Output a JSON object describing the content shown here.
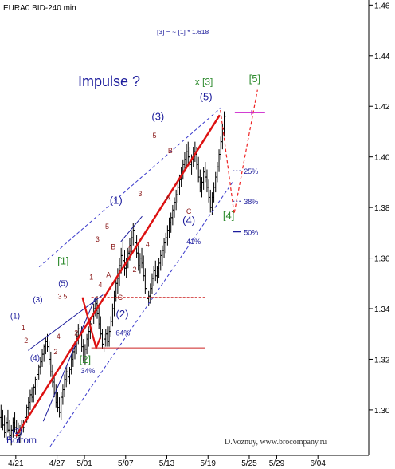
{
  "chart_data": {
    "type": "candlestick",
    "title": "EURA0 BID-240 min",
    "formula": "[3] = ~ [1] * 1.618",
    "impulse_label": "Impulse ?",
    "bottom_label": "Bottom",
    "credit": "D.Voznuy, www.brocompany.ru",
    "ylim": [
      1.282,
      1.462
    ],
    "y_ticks": [
      "1.46",
      "1.44",
      "1.42",
      "1.40",
      "1.38",
      "1.36",
      "1.34",
      "1.32",
      "1.30"
    ],
    "x_ticks": [
      "4/21",
      "4/27",
      "5/01",
      "5/07",
      "5/13",
      "5/19",
      "5/25",
      "5/29",
      "6/04"
    ],
    "x_tick_days": [
      0,
      6,
      10,
      16,
      22,
      28,
      34,
      38,
      44
    ],
    "xlim_days": [
      -2.3,
      51.4
    ],
    "candles": [
      [
        -2.15,
        1.297,
        1.302,
        1.293,
        1.297
      ],
      [
        -1.9,
        1.297,
        1.3,
        1.292,
        1.294
      ],
      [
        -1.65,
        1.294,
        1.298,
        1.289,
        1.291
      ],
      [
        -1.4,
        1.291,
        1.297,
        1.288,
        1.295
      ],
      [
        -1.15,
        1.295,
        1.3,
        1.291,
        1.292
      ],
      [
        -0.9,
        1.292,
        1.296,
        1.288,
        1.29
      ],
      [
        -0.65,
        1.29,
        1.294,
        1.286,
        1.292
      ],
      [
        -0.4,
        1.292,
        1.297,
        1.289,
        1.295
      ],
      [
        -0.15,
        1.295,
        1.299,
        1.291,
        1.293
      ],
      [
        0.1,
        1.293,
        1.296,
        1.289,
        1.291
      ],
      [
        0.35,
        1.291,
        1.295,
        1.288,
        1.29
      ],
      [
        0.6,
        1.29,
        1.294,
        1.287,
        1.292
      ],
      [
        0.85,
        1.292,
        1.296,
        1.29,
        1.294
      ],
      [
        1.1,
        1.294,
        1.296,
        1.291,
        1.293
      ],
      [
        1.35,
        1.293,
        1.298,
        1.292,
        1.297
      ],
      [
        1.6,
        1.297,
        1.302,
        1.295,
        1.301
      ],
      [
        1.85,
        1.301,
        1.305,
        1.297,
        1.303
      ],
      [
        2.1,
        1.303,
        1.308,
        1.3,
        1.306
      ],
      [
        2.35,
        1.306,
        1.309,
        1.303,
        1.305
      ],
      [
        2.6,
        1.305,
        1.31,
        1.303,
        1.309
      ],
      [
        2.85,
        1.309,
        1.313,
        1.306,
        1.312
      ],
      [
        3.1,
        1.312,
        1.316,
        1.309,
        1.314
      ],
      [
        3.35,
        1.314,
        1.318,
        1.312,
        1.317
      ],
      [
        3.6,
        1.317,
        1.321,
        1.314,
        1.319
      ],
      [
        3.85,
        1.319,
        1.324,
        1.317,
        1.322
      ],
      [
        4.1,
        1.322,
        1.326,
        1.319,
        1.325
      ],
      [
        4.35,
        1.325,
        1.329,
        1.322,
        1.327
      ],
      [
        4.6,
        1.327,
        1.33,
        1.323,
        1.325
      ],
      [
        4.85,
        1.325,
        1.327,
        1.318,
        1.32
      ],
      [
        5.1,
        1.32,
        1.323,
        1.313,
        1.315
      ],
      [
        5.35,
        1.315,
        1.318,
        1.309,
        1.311
      ],
      [
        5.6,
        1.311,
        1.314,
        1.305,
        1.307
      ],
      [
        5.85,
        1.307,
        1.31,
        1.301,
        1.303
      ],
      [
        6.1,
        1.303,
        1.307,
        1.299,
        1.301
      ],
      [
        6.35,
        1.301,
        1.305,
        1.297,
        1.299
      ],
      [
        6.6,
        1.299,
        1.307,
        1.296,
        1.305
      ],
      [
        6.85,
        1.305,
        1.31,
        1.302,
        1.308
      ],
      [
        7.1,
        1.308,
        1.314,
        1.305,
        1.312
      ],
      [
        7.35,
        1.312,
        1.317,
        1.309,
        1.315
      ],
      [
        7.6,
        1.315,
        1.318,
        1.311,
        1.313
      ],
      [
        7.85,
        1.313,
        1.317,
        1.31,
        1.316
      ],
      [
        8.1,
        1.316,
        1.322,
        1.314,
        1.32
      ],
      [
        8.35,
        1.32,
        1.325,
        1.317,
        1.323
      ],
      [
        8.6,
        1.323,
        1.327,
        1.32,
        1.325
      ],
      [
        8.85,
        1.325,
        1.331,
        1.322,
        1.329
      ],
      [
        9.1,
        1.329,
        1.334,
        1.326,
        1.332
      ],
      [
        9.35,
        1.332,
        1.336,
        1.328,
        1.33
      ],
      [
        9.6,
        1.33,
        1.333,
        1.323,
        1.325
      ],
      [
        9.85,
        1.325,
        1.328,
        1.319,
        1.321
      ],
      [
        10.1,
        1.321,
        1.326,
        1.318,
        1.324
      ],
      [
        10.35,
        1.324,
        1.33,
        1.322,
        1.328
      ],
      [
        10.6,
        1.328,
        1.333,
        1.325,
        1.331
      ],
      [
        10.85,
        1.331,
        1.336,
        1.328,
        1.334
      ],
      [
        11.1,
        1.334,
        1.339,
        1.331,
        1.337
      ],
      [
        11.35,
        1.337,
        1.342,
        1.334,
        1.34
      ],
      [
        11.6,
        1.34,
        1.344,
        1.337,
        1.342
      ],
      [
        11.85,
        1.342,
        1.345,
        1.336,
        1.338
      ],
      [
        12.1,
        1.338,
        1.341,
        1.332,
        1.334
      ],
      [
        12.35,
        1.334,
        1.337,
        1.328,
        1.33
      ],
      [
        12.6,
        1.33,
        1.332,
        1.324,
        1.326
      ],
      [
        12.85,
        1.326,
        1.33,
        1.323,
        1.328
      ],
      [
        13.1,
        1.328,
        1.332,
        1.325,
        1.33
      ],
      [
        13.35,
        1.33,
        1.333,
        1.325,
        1.327
      ],
      [
        13.6,
        1.327,
        1.333,
        1.325,
        1.331
      ],
      [
        13.85,
        1.331,
        1.337,
        1.329,
        1.335
      ],
      [
        14.1,
        1.335,
        1.342,
        1.333,
        1.34
      ],
      [
        14.35,
        1.34,
        1.347,
        1.337,
        1.345
      ],
      [
        14.6,
        1.345,
        1.352,
        1.343,
        1.35
      ],
      [
        14.85,
        1.35,
        1.356,
        1.346,
        1.352
      ],
      [
        15.1,
        1.352,
        1.36,
        1.349,
        1.357
      ],
      [
        15.35,
        1.357,
        1.364,
        1.354,
        1.361
      ],
      [
        15.6,
        1.361,
        1.367,
        1.357,
        1.359
      ],
      [
        15.85,
        1.359,
        1.363,
        1.353,
        1.356
      ],
      [
        16.1,
        1.356,
        1.36,
        1.352,
        1.359
      ],
      [
        16.35,
        1.359,
        1.364,
        1.356,
        1.362
      ],
      [
        16.6,
        1.362,
        1.368,
        1.359,
        1.365
      ],
      [
        16.85,
        1.365,
        1.371,
        1.362,
        1.368
      ],
      [
        17.1,
        1.368,
        1.374,
        1.365,
        1.371
      ],
      [
        17.35,
        1.371,
        1.374,
        1.364,
        1.366
      ],
      [
        17.6,
        1.366,
        1.369,
        1.36,
        1.362
      ],
      [
        17.85,
        1.362,
        1.365,
        1.355,
        1.357
      ],
      [
        18.1,
        1.357,
        1.362,
        1.354,
        1.36
      ],
      [
        18.35,
        1.36,
        1.364,
        1.356,
        1.358
      ],
      [
        18.6,
        1.358,
        1.361,
        1.351,
        1.353
      ],
      [
        18.85,
        1.353,
        1.356,
        1.346,
        1.348
      ],
      [
        19.1,
        1.348,
        1.351,
        1.342,
        1.344
      ],
      [
        19.35,
        1.344,
        1.347,
        1.341,
        1.345
      ],
      [
        19.6,
        1.345,
        1.35,
        1.342,
        1.348
      ],
      [
        19.85,
        1.348,
        1.354,
        1.346,
        1.352
      ],
      [
        20.1,
        1.352,
        1.357,
        1.349,
        1.355
      ],
      [
        20.35,
        1.355,
        1.359,
        1.351,
        1.353
      ],
      [
        20.6,
        1.353,
        1.357,
        1.35,
        1.356
      ],
      [
        20.85,
        1.356,
        1.36,
        1.352,
        1.358
      ],
      [
        21.1,
        1.358,
        1.363,
        1.355,
        1.361
      ],
      [
        21.35,
        1.361,
        1.365,
        1.357,
        1.363
      ],
      [
        21.6,
        1.363,
        1.368,
        1.36,
        1.366
      ],
      [
        21.85,
        1.366,
        1.37,
        1.362,
        1.368
      ],
      [
        22.1,
        1.368,
        1.373,
        1.365,
        1.371
      ],
      [
        22.35,
        1.371,
        1.376,
        1.368,
        1.374
      ],
      [
        22.6,
        1.374,
        1.378,
        1.37,
        1.376
      ],
      [
        22.85,
        1.376,
        1.381,
        1.373,
        1.379
      ],
      [
        23.1,
        1.379,
        1.384,
        1.376,
        1.382
      ],
      [
        23.35,
        1.382,
        1.387,
        1.379,
        1.385
      ],
      [
        23.6,
        1.385,
        1.39,
        1.382,
        1.388
      ],
      [
        23.85,
        1.388,
        1.393,
        1.385,
        1.391
      ],
      [
        24.1,
        1.391,
        1.396,
        1.388,
        1.394
      ],
      [
        24.35,
        1.394,
        1.399,
        1.391,
        1.397
      ],
      [
        24.6,
        1.397,
        1.402,
        1.394,
        1.399
      ],
      [
        24.85,
        1.399,
        1.405,
        1.396,
        1.402
      ],
      [
        25.1,
        1.402,
        1.406,
        1.397,
        1.4
      ],
      [
        25.35,
        1.4,
        1.404,
        1.395,
        1.397
      ],
      [
        25.6,
        1.397,
        1.401,
        1.393,
        1.399
      ],
      [
        25.85,
        1.399,
        1.404,
        1.396,
        1.402
      ],
      [
        26.1,
        1.402,
        1.406,
        1.398,
        1.401
      ],
      [
        26.35,
        1.401,
        1.404,
        1.395,
        1.397
      ],
      [
        26.6,
        1.397,
        1.4,
        1.39,
        1.392
      ],
      [
        26.85,
        1.392,
        1.395,
        1.386,
        1.388
      ],
      [
        27.1,
        1.388,
        1.392,
        1.384,
        1.39
      ],
      [
        27.35,
        1.39,
        1.396,
        1.387,
        1.394
      ],
      [
        27.6,
        1.394,
        1.398,
        1.39,
        1.392
      ],
      [
        27.85,
        1.392,
        1.395,
        1.386,
        1.388
      ],
      [
        28.1,
        1.388,
        1.391,
        1.382,
        1.384
      ],
      [
        28.35,
        1.384,
        1.387,
        1.378,
        1.38
      ],
      [
        28.6,
        1.38,
        1.386,
        1.377,
        1.384
      ],
      [
        28.85,
        1.384,
        1.39,
        1.382,
        1.388
      ],
      [
        29.1,
        1.388,
        1.394,
        1.386,
        1.392
      ],
      [
        29.35,
        1.392,
        1.398,
        1.39,
        1.396
      ],
      [
        29.6,
        1.396,
        1.403,
        1.394,
        1.401
      ],
      [
        29.85,
        1.401,
        1.408,
        1.399,
        1.406
      ],
      [
        30.1,
        1.406,
        1.413,
        1.403,
        1.411
      ],
      [
        30.35,
        1.411,
        1.418,
        1.408,
        1.416
      ]
    ],
    "wave_labels": [
      {
        "text": "(1)",
        "day": -0.1,
        "price": 1.336,
        "color": "#1c1c9c",
        "size": 10
      },
      {
        "text": "(2)",
        "day": 0.2,
        "price": 1.2905,
        "color": "#1c1c9c",
        "size": 10
      },
      {
        "text": "(3)",
        "day": 3.2,
        "price": 1.3425,
        "color": "#1c1c9c",
        "size": 10
      },
      {
        "text": "(4)",
        "day": 2.8,
        "price": 1.3195,
        "color": "#1c1c9c",
        "size": 10
      },
      {
        "text": "(5)",
        "day": 6.9,
        "price": 1.349,
        "color": "#1c1c9c",
        "size": 10
      },
      {
        "text": "1",
        "day": 1.1,
        "price": 1.3315,
        "color": "#8b1a1a",
        "size": 9
      },
      {
        "text": "2",
        "day": 1.5,
        "price": 1.3265,
        "color": "#8b1a1a",
        "size": 9
      },
      {
        "text": "3",
        "day": 6.4,
        "price": 1.344,
        "color": "#8b1a1a",
        "size": 9
      },
      {
        "text": "5",
        "day": 7.2,
        "price": 1.344,
        "color": "#8b1a1a",
        "size": 9
      },
      {
        "text": "4",
        "day": 6.2,
        "price": 1.328,
        "color": "#8b1a1a",
        "size": 9
      },
      {
        "text": "2",
        "day": 5.8,
        "price": 1.322,
        "color": "#8b1a1a",
        "size": 9
      },
      {
        "text": "2",
        "day": 8.8,
        "price": 1.3295,
        "color": "#8b1a1a",
        "size": 9
      },
      {
        "text": "1",
        "day": 11.0,
        "price": 1.3515,
        "color": "#8b1a1a",
        "size": 9
      },
      {
        "text": "3",
        "day": 11.9,
        "price": 1.3665,
        "color": "#8b1a1a",
        "size": 9
      },
      {
        "text": "4",
        "day": 12.3,
        "price": 1.3485,
        "color": "#8b1a1a",
        "size": 9
      },
      {
        "text": "5",
        "day": 13.3,
        "price": 1.3715,
        "color": "#8b1a1a",
        "size": 9
      },
      {
        "text": "A",
        "day": 13.5,
        "price": 1.3525,
        "color": "#8b1a1a",
        "size": 9
      },
      {
        "text": "B",
        "day": 14.2,
        "price": 1.3635,
        "color": "#8b1a1a",
        "size": 9
      },
      {
        "text": "C",
        "day": 15.2,
        "price": 1.3435,
        "color": "#8b1a1a",
        "size": 9
      },
      {
        "text": "1",
        "day": 16.6,
        "price": 1.3625,
        "color": "#8b1a1a",
        "size": 9
      },
      {
        "text": "2",
        "day": 17.3,
        "price": 1.3545,
        "color": "#8b1a1a",
        "size": 9
      },
      {
        "text": "3",
        "day": 18.1,
        "price": 1.3845,
        "color": "#8b1a1a",
        "size": 9
      },
      {
        "text": "4",
        "day": 19.2,
        "price": 1.3645,
        "color": "#8b1a1a",
        "size": 9
      },
      {
        "text": "5",
        "day": 20.2,
        "price": 1.4075,
        "color": "#8b1a1a",
        "size": 9
      },
      {
        "text": "A",
        "day": 22.2,
        "price": 1.3825,
        "color": "#8b1a1a",
        "size": 9
      },
      {
        "text": "B",
        "day": 22.5,
        "price": 1.4015,
        "color": "#8b1a1a",
        "size": 9
      },
      {
        "text": "C",
        "day": 25.2,
        "price": 1.3775,
        "color": "#8b1a1a",
        "size": 9
      }
    ],
    "big_labels": [
      {
        "text": "(1)",
        "day": 14.6,
        "price": 1.3815,
        "color": "#1c1c9c",
        "size": 13
      },
      {
        "text": "(2)",
        "day": 15.5,
        "price": 1.3365,
        "color": "#1c1c9c",
        "size": 13
      },
      {
        "text": "(3)",
        "day": 20.7,
        "price": 1.4145,
        "color": "#1c1c9c",
        "size": 13
      },
      {
        "text": "(4)",
        "day": 25.2,
        "price": 1.3735,
        "color": "#1c1c9c",
        "size": 13
      },
      {
        "text": "(5)",
        "day": 27.7,
        "price": 1.4225,
        "color": "#1c1c9c",
        "size": 13
      },
      {
        "text": "[1]",
        "day": 6.9,
        "price": 1.3575,
        "color": "#2e8b2e",
        "size": 13
      },
      {
        "text": "[2]",
        "day": 10.1,
        "price": 1.3185,
        "color": "#2e8b2e",
        "size": 13
      },
      {
        "text": "x [3]",
        "day": 27.4,
        "price": 1.4285,
        "color": "#2e8b2e",
        "size": 12
      },
      {
        "text": "[4]",
        "day": 31.0,
        "price": 1.3755,
        "color": "#2e8b2e",
        "size": 13
      },
      {
        "text": "[5]",
        "day": 34.8,
        "price": 1.4295,
        "color": "#2e8b2e",
        "size": 13
      }
    ],
    "pct_labels": [
      {
        "text": "34%",
        "day": 10.5,
        "price": 1.3145,
        "color": "#1c1c9c"
      },
      {
        "text": "64%",
        "day": 15.6,
        "price": 1.3295,
        "color": "#1c1c9c"
      },
      {
        "text": "41%",
        "day": 25.9,
        "price": 1.3655,
        "color": "#1c1c9c"
      }
    ],
    "fib_levels": [
      {
        "label": "25%",
        "price": 1.3945
      },
      {
        "label": "38%",
        "price": 1.3825
      },
      {
        "label": "50%",
        "price": 1.3705
      }
    ],
    "red_main_line": [
      [
        0,
        1.2895
      ],
      [
        29.7,
        1.4165
      ]
    ],
    "wave1_zigzag": [
      [
        9.7,
        1.3445
      ],
      [
        11.7,
        1.3245
      ],
      [
        12.3,
        1.3285
      ]
    ],
    "projection_path": [
      [
        29.8,
        1.4185
      ],
      [
        31.8,
        1.3775
      ],
      [
        35.2,
        1.4265
      ]
    ],
    "projection_target": {
      "day": 34.1,
      "price": 1.4175
    },
    "channel_outer": [
      [
        [
          1.8,
          1.3235
        ],
        [
          12.7,
          1.3455
        ]
      ],
      [
        [
          4.0,
          1.2955
        ],
        [
          11.6,
          1.3445
        ]
      ]
    ],
    "channel_main": [
      [
        [
          3.4,
          1.3565
        ],
        [
          29.9,
          1.4195
        ]
      ],
      [
        [
          5.0,
          1.2855
        ],
        [
          31.7,
          1.3905
        ]
      ]
    ],
    "channel_mid": [
      [
        [
          15.3,
          1.3665
        ],
        [
          18.4,
          1.3765
        ]
      ]
    ],
    "horizontal_lines": [
      {
        "day_from": 11.0,
        "day_to": 27.6,
        "price": 1.3445,
        "dashed": true
      },
      {
        "day_from": 11.0,
        "day_to": 27.6,
        "price": 1.3245,
        "dashed": false
      }
    ]
  }
}
